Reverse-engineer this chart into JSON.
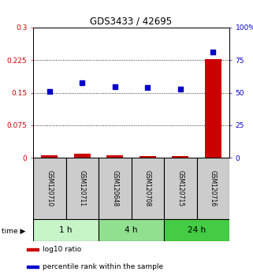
{
  "title": "GDS3433 / 42695",
  "samples": [
    "GSM120710",
    "GSM120711",
    "GSM120648",
    "GSM120708",
    "GSM120715",
    "GSM120716"
  ],
  "log10_ratio": [
    0.005,
    0.01,
    0.005,
    0.003,
    0.004,
    0.228
  ],
  "percentile_rank": [
    0.153,
    0.172,
    0.163,
    0.162,
    0.158,
    0.243
  ],
  "groups": [
    {
      "label": "1 h",
      "start": 0,
      "end": 2,
      "color": "#c8f5c8"
    },
    {
      "label": "4 h",
      "start": 2,
      "end": 4,
      "color": "#90e090"
    },
    {
      "label": "24 h",
      "start": 4,
      "end": 6,
      "color": "#44cc44"
    }
  ],
  "ylim_left": [
    0,
    0.3
  ],
  "ylim_right": [
    0,
    100
  ],
  "yticks_left": [
    0,
    0.075,
    0.15,
    0.225,
    0.3
  ],
  "yticks_right": [
    0,
    25,
    50,
    75,
    100
  ],
  "ytick_labels_left": [
    "0",
    "0.075",
    "0.15",
    "0.225",
    "0.3"
  ],
  "ytick_labels_right": [
    "0",
    "25",
    "50",
    "75",
    "100%"
  ],
  "hlines": [
    0.075,
    0.15,
    0.225
  ],
  "bar_color": "#cc0000",
  "dot_color": "#0000cc",
  "left_axis_color": "#cc0000",
  "right_axis_color": "#0000cc",
  "sample_box_color": "#cccccc",
  "legend_items": [
    {
      "color": "#cc0000",
      "label": "log10 ratio"
    },
    {
      "color": "#0000cc",
      "label": "percentile rank within the sample"
    }
  ]
}
